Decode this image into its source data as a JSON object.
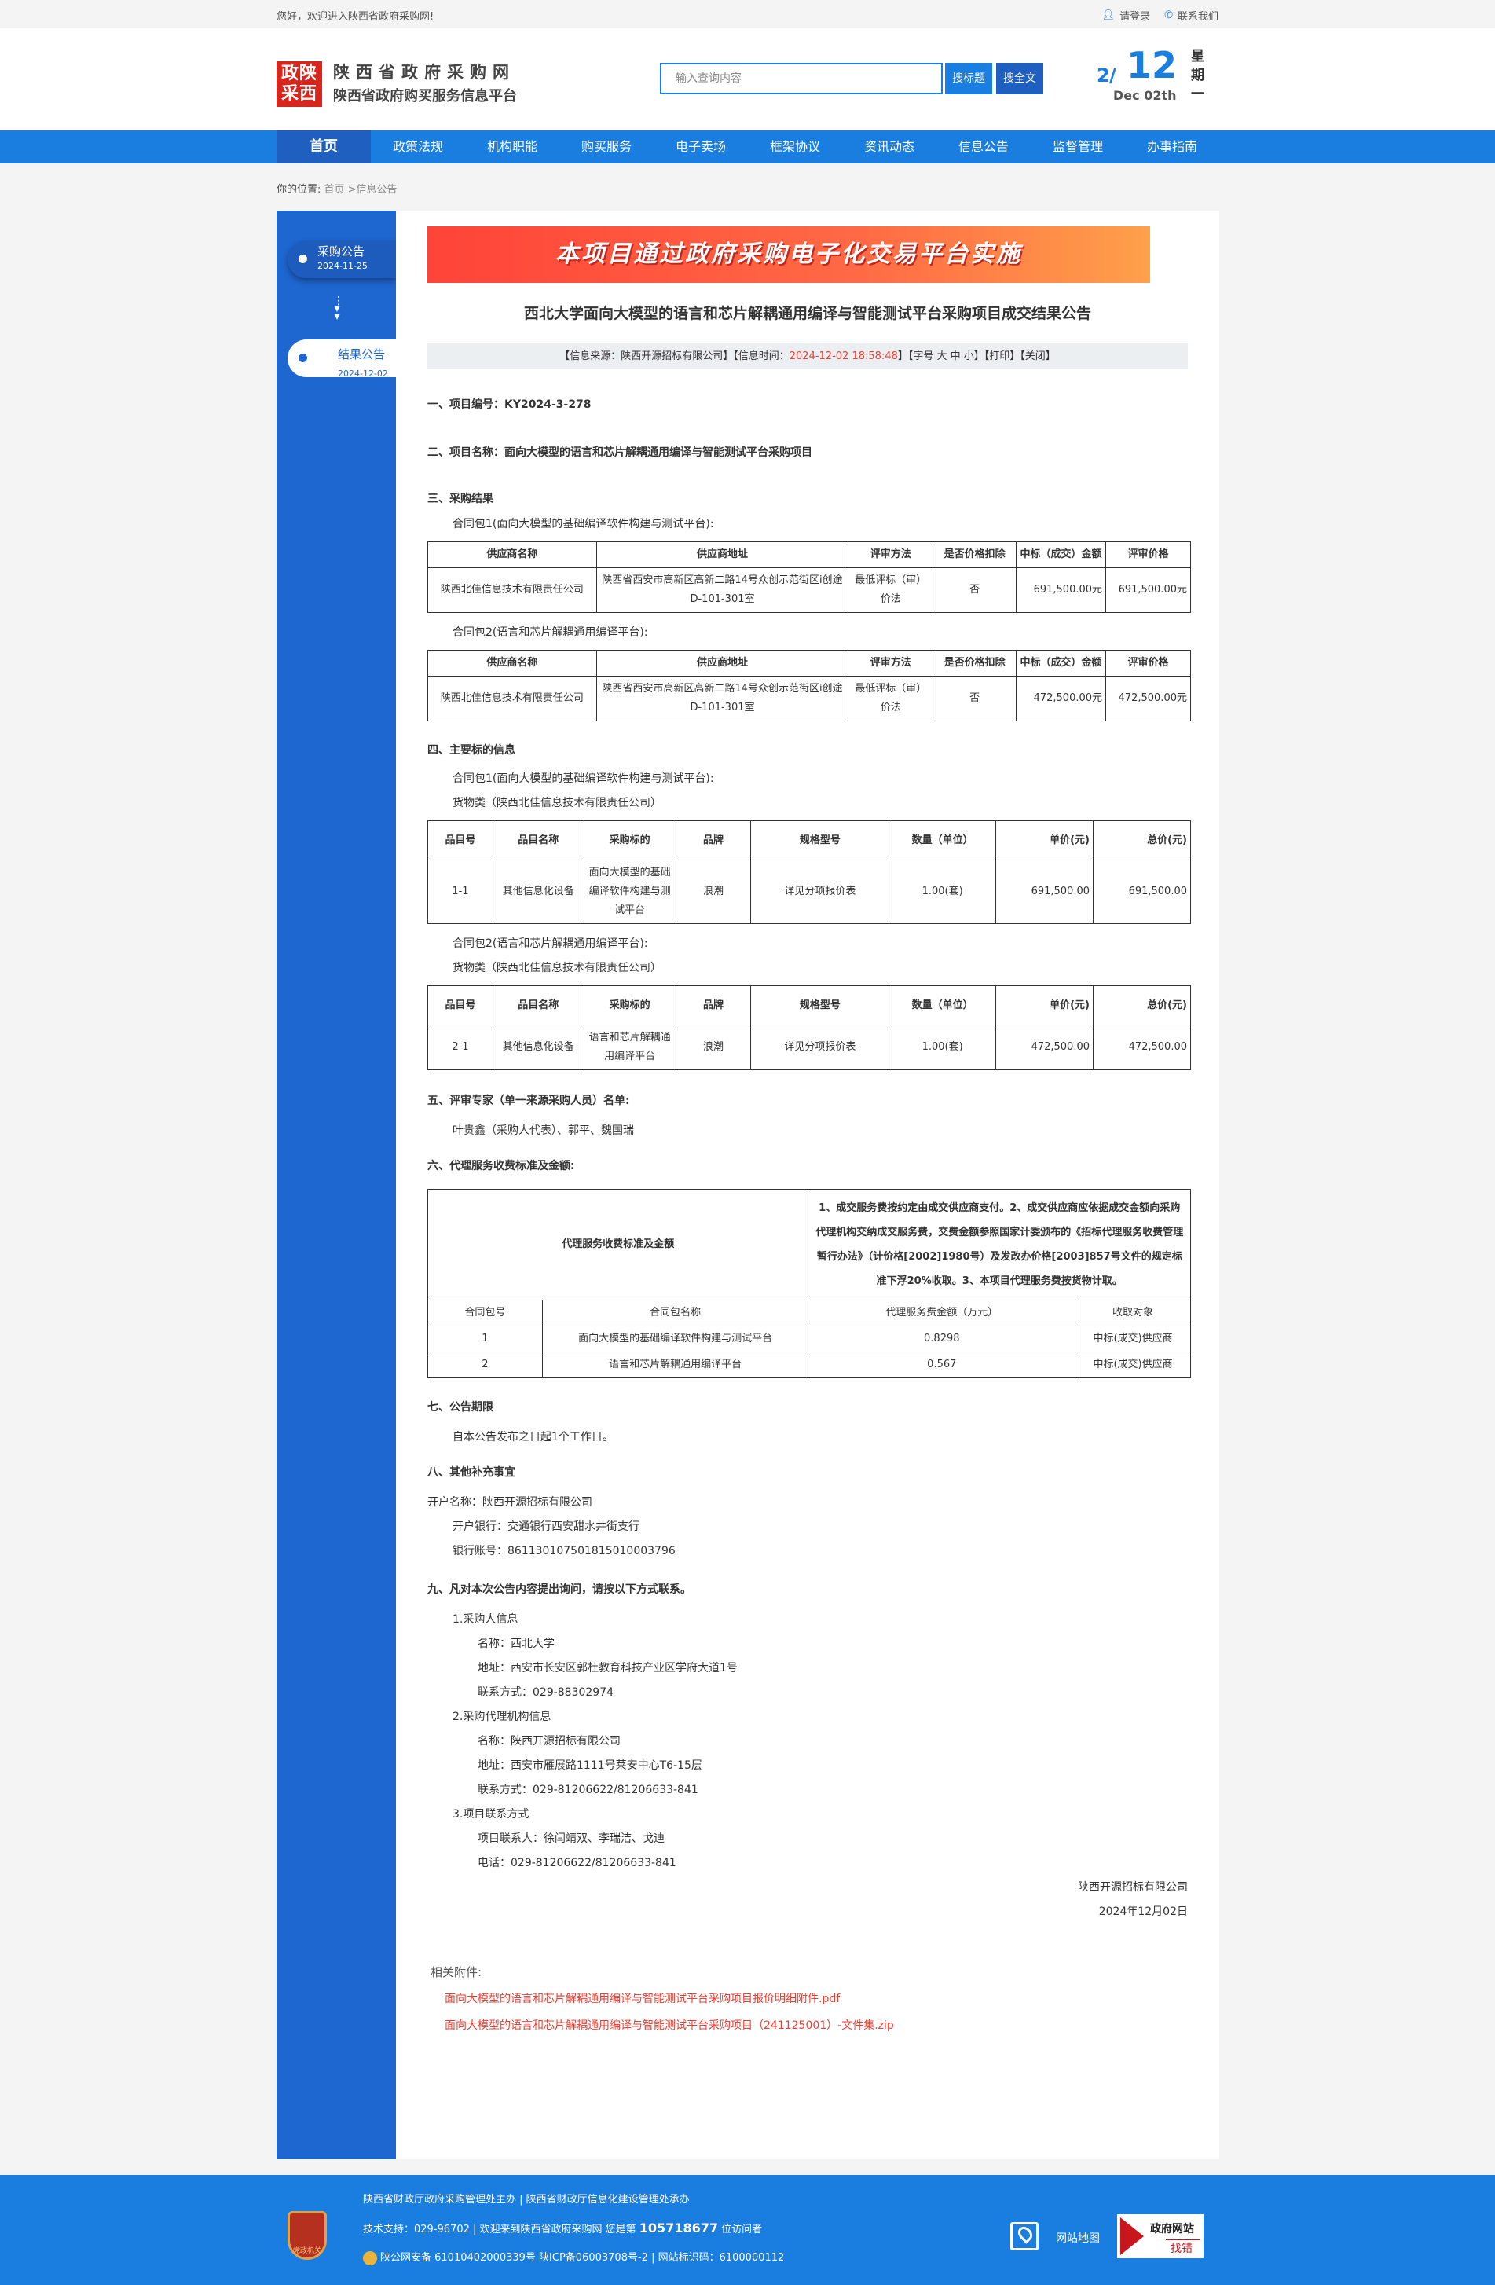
{
  "topbar": {
    "welcome": "您好，欢迎进入陕西省政府采购网!",
    "login": "请登录",
    "contact": "联系我们"
  },
  "header": {
    "logo_text": [
      "政陕",
      "采西"
    ],
    "site_name": "陕西省政府采购网",
    "site_subtitle": "陕西省政府购买服务信息平台",
    "search_placeholder": "输入查询内容",
    "search_title_btn": "搜标题",
    "search_full_btn": "搜全文",
    "date": {
      "month": "2",
      "day": "12",
      "en": "Dec 02th",
      "weekday": "星期一"
    }
  },
  "nav": [
    "首页",
    "政策法规",
    "机构职能",
    "购买服务",
    "电子卖场",
    "框架协议",
    "资讯动态",
    "信息公告",
    "监督管理",
    "办事指南"
  ],
  "breadcrumb": {
    "label": "你的位置:",
    "path": "首页 >信息公告"
  },
  "sidebar": [
    {
      "label": "采购公告",
      "date": "2024-11-25"
    },
    {
      "label": "结果公告",
      "date": "2024-12-02"
    }
  ],
  "accent": "#1a7de0",
  "banner": "本项目通过政府采购电子化交易平台实施",
  "title": "西北大学面向大模型的语言和芯片解耦通用编译与智能测试平台采购项目成交结果公告",
  "infobar": {
    "source": "【信息来源：陕西开源招标有限公司】【信息时间：",
    "time": "2024-12-02 18:58:48",
    "tail": "】【字号 大 中 小】【打印】【关闭】"
  },
  "s1": "一、项目编号：KY2024-3-278",
  "s2": "二、项目名称：面向大模型的语言和芯片解耦通用编译与智能测试平台采购项目",
  "s3": {
    "heading": "三、采购结果",
    "pkg1": "合同包1(面向大模型的基础编译软件构建与测试平台):",
    "pkg2": "合同包2(语言和芯片解耦通用编译平台):",
    "headers": [
      "供应商名称",
      "供应商地址",
      "评审方法",
      "是否价格扣除",
      "中标（成交）金额",
      "评审价格"
    ],
    "rows": [
      [
        "陕西北佳信息技术有限责任公司",
        "陕西省西安市高新区高新二路14号众创示范街区i创途D-101-301室",
        "最低评标（审）价法",
        "否",
        "691,500.00元",
        "691,500.00元"
      ],
      [
        "陕西北佳信息技术有限责任公司",
        "陕西省西安市高新区高新二路14号众创示范街区i创途D-101-301室",
        "最低评标（审）价法",
        "否",
        "472,500.00元",
        "472,500.00元"
      ]
    ]
  },
  "s4": {
    "heading": "四、主要标的信息",
    "pkg1": "合同包1(面向大模型的基础编译软件构建与测试平台):",
    "pkg2": "合同包2(语言和芯片解耦通用编译平台):",
    "goods": "货物类（陕西北佳信息技术有限责任公司）",
    "headers": [
      "品目号",
      "品目名称",
      "采购标的",
      "品牌",
      "规格型号",
      "数量（单位）",
      "单价(元)",
      "总价(元)"
    ],
    "rows": [
      [
        "1-1",
        "其他信息化设备",
        "面向大模型的基础编译软件构建与测试平台",
        "浪潮",
        "详见分项报价表",
        "1.00(套)",
        "691,500.00",
        "691,500.00"
      ],
      [
        "2-1",
        "其他信息化设备",
        "语言和芯片解耦通用编译平台",
        "浪潮",
        "详见分项报价表",
        "1.00(套)",
        "472,500.00",
        "472,500.00"
      ]
    ]
  },
  "s5": {
    "heading": "五、评审专家（单一来源采购人员）名单:",
    "names": "叶贵鑫（采购人代表）、郭平、魏国瑞"
  },
  "s6": {
    "heading": "六、代理服务收费标准及金额:",
    "label": "代理服务收费标准及金额",
    "desc": "1、成交服务费按约定由成交供应商支付。2、成交供应商应依据成交金额向采购代理机构交纳成交服务费，交费金额参照国家计委颁布的《招标代理服务收费管理暂行办法》（计价格[2002]1980号）及发改办价格[2003]857号文件的规定标准下浮20%收取。3、本项目代理服务费按货物计取。",
    "headers": [
      "合同包号",
      "合同包名称",
      "代理服务费金额（万元）",
      "收取对象"
    ],
    "rows": [
      [
        "1",
        "面向大模型的基础编译软件构建与测试平台",
        "0.8298",
        "中标(成交)供应商"
      ],
      [
        "2",
        "语言和芯片解耦通用编译平台",
        "0.567",
        "中标(成交)供应商"
      ]
    ]
  },
  "s7": {
    "heading": "七、公告期限",
    "text": "自本公告发布之日起1个工作日。"
  },
  "s8": {
    "heading": "八、其他补充事宜",
    "account_name": "开户名称：陕西开源招标有限公司",
    "bank": "开户银行：交通银行西安甜水井街支行"
  },
  "s8b": {
    "account_no": "银行账号：861130107501815010003796"
  },
  "s9": {
    "heading": "九、凡对本次公告内容提出询问，请按以下方式联系。",
    "buyer": {
      "title": "1.采购人信息",
      "name": "名称：西北大学",
      "addr": "地址：西安市长安区郭杜教育科技产业区学府大道1号",
      "tel": "联系方式：029-88302974"
    },
    "agency": {
      "title": "2.采购代理机构信息",
      "name": "名称：陕西开源招标有限公司",
      "addr": "地址：西安市雁展路1111号莱安中心T6-15层",
      "tel": "联系方式：029-81206622/81206633-841"
    },
    "project": {
      "title": "3.项目联系方式",
      "person": "项目联系人：徐闫靖双、李瑞洁、戈迪",
      "tel": "电话：029-81206622/81206633-841"
    }
  },
  "sign": {
    "org": "陕西开源招标有限公司",
    "date": "2024年12月02日"
  },
  "attachments": {
    "title": "相关附件:",
    "files": [
      "面向大模型的语言和芯片解耦通用编译与智能测试平台采购项目报价明细附件.pdf",
      "面向大模型的语言和芯片解耦通用编译与智能测试平台采购项目（241125001）-文件集.zip"
    ]
  },
  "footer": {
    "line1": "陕西省财政厅政府采购管理处主办 | 陕西省财政厅信息化建设管理处承办",
    "support": "技术支持：029-96702 | 欢迎来到陕西省政府采购网 您是第",
    "visits": "105718677",
    "visits_tail": "位访问者",
    "record": "陕公网安备 61010402000339号   陕ICP备06003708号-2  |  网站标识码：6100000112",
    "emblem": "党政机关",
    "sitemap": "网站地图",
    "zhaocuo_1": "政府网站",
    "zhaocuo_2": "找错"
  }
}
